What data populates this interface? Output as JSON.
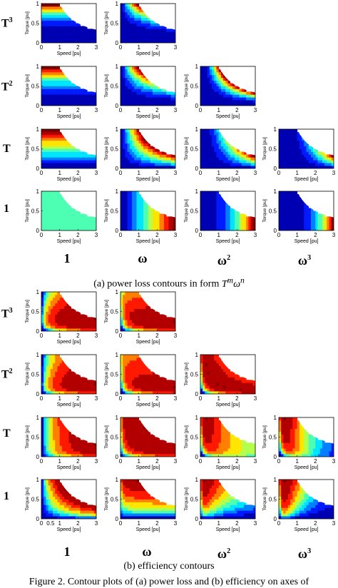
{
  "figure": {
    "caption_a_prefix": "(a) power loss contours in form",
    "caption_a_math": "T",
    "caption_a_sup_m": "m",
    "caption_a_omega": "ω",
    "caption_a_sup_n": "n",
    "caption_b": "(b) efficiency contours",
    "figure_caption": "Figure 2.   Contour plots of (a) power loss and (b) efficiency on axes of"
  },
  "row_labels_a": [
    {
      "base": "T",
      "sup": "3"
    },
    {
      "base": "T",
      "sup": "2"
    },
    {
      "base": "T",
      "sup": ""
    },
    {
      "base": "1",
      "sup": ""
    }
  ],
  "row_labels_b": [
    {
      "base": "T",
      "sup": "3"
    },
    {
      "base": "T",
      "sup": "2"
    },
    {
      "base": "T",
      "sup": ""
    },
    {
      "base": "1",
      "sup": ""
    }
  ],
  "col_labels": [
    {
      "base": "1",
      "sup": ""
    },
    {
      "base": "ω",
      "sup": ""
    },
    {
      "base": "ω",
      "sup": "2"
    },
    {
      "base": "ω",
      "sup": "3"
    }
  ],
  "axis": {
    "xlabel": "Speed [pu]",
    "ylabel": "Torque [pu]",
    "xticks": [
      "0",
      "1",
      "2",
      "3"
    ],
    "xticks_alt": [
      "0",
      "0.5",
      "1",
      "2",
      "3"
    ],
    "yticks": [
      "0",
      "0.5",
      "1"
    ]
  },
  "chart_data": {
    "type": "heatmap",
    "x_range": [
      0,
      3
    ],
    "y_range": [
      0,
      1
    ],
    "colormap": "jet",
    "panels_a": [
      {
        "m": 3,
        "n": 0
      },
      {
        "m": 3,
        "n": 1
      },
      {
        "m": 2,
        "n": 0
      },
      {
        "m": 2,
        "n": 1
      },
      {
        "m": 2,
        "n": 2
      },
      {
        "m": 1,
        "n": 0
      },
      {
        "m": 1,
        "n": 1
      },
      {
        "m": 1,
        "n": 2
      },
      {
        "m": 1,
        "n": 3
      },
      {
        "m": 0,
        "n": 0
      },
      {
        "m": 0,
        "n": 1
      },
      {
        "m": 0,
        "n": 2
      },
      {
        "m": 0,
        "n": 3
      }
    ],
    "panels_b": [
      {
        "m": 3,
        "n": 0
      },
      {
        "m": 3,
        "n": 1
      },
      {
        "m": 2,
        "n": 0
      },
      {
        "m": 2,
        "n": 1
      },
      {
        "m": 2,
        "n": 2
      },
      {
        "m": 1,
        "n": 0
      },
      {
        "m": 1,
        "n": 1
      },
      {
        "m": 1,
        "n": 2
      },
      {
        "m": 1,
        "n": 3
      },
      {
        "m": 0,
        "n": 0
      },
      {
        "m": 0,
        "n": 1
      },
      {
        "m": 0,
        "n": 2
      },
      {
        "m": 0,
        "n": 3
      }
    ]
  }
}
